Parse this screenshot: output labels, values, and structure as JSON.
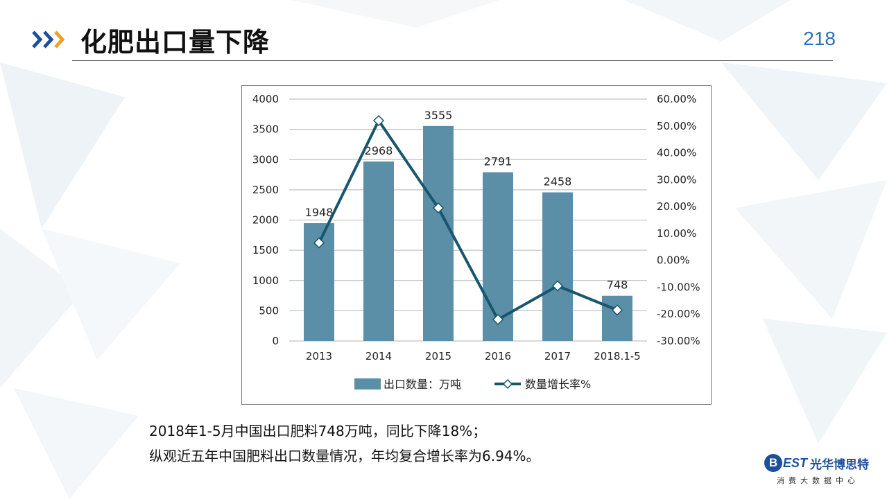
{
  "slide": {
    "title": "化肥出口量下降",
    "page_number": "218",
    "notes": [
      "2018年1-5月中国出口肥料748万吨，同比下降18%；",
      "纵观近五年中国肥料出口数量情况，年均复合增长率为6.94%。"
    ]
  },
  "logo": {
    "mark": "B",
    "mark_rest": "EST",
    "name": "光华博思特",
    "tagline": "消费大数据中心"
  },
  "colors": {
    "bar": "#5b8fa8",
    "line": "#18566e",
    "accent_arrow_dark": "#1f4f9a",
    "accent_arrow_orange": "#f0a02a",
    "page_number": "#2f6fb4"
  },
  "chart_data": {
    "type": "bar",
    "categories": [
      "2013",
      "2014",
      "2015",
      "2016",
      "2017",
      "2018.1-5"
    ],
    "series": [
      {
        "name": "出口数量：万吨",
        "type": "bar",
        "axis": "left",
        "values": [
          1948,
          2968,
          3555,
          2791,
          2458,
          748
        ],
        "data_labels": [
          "1948",
          "2968",
          "3555",
          "2791",
          "2458",
          "748"
        ]
      },
      {
        "name": "数量增长率%",
        "type": "line",
        "axis": "right",
        "marker": "diamond",
        "values": [
          6.5,
          52.0,
          19.5,
          -22.0,
          -9.5,
          -18.5
        ]
      }
    ],
    "y_left": {
      "ylim": [
        0,
        4000
      ],
      "ticks": [
        0,
        500,
        1000,
        1500,
        2000,
        2500,
        3000,
        3500,
        4000
      ],
      "tick_labels": [
        "0",
        "500",
        "1000",
        "1500",
        "2000",
        "2500",
        "3000",
        "3500",
        "4000"
      ]
    },
    "y_right": {
      "ylim": [
        -30,
        60
      ],
      "ticks": [
        -30,
        -20,
        -10,
        0,
        10,
        20,
        30,
        40,
        50,
        60
      ],
      "tick_labels": [
        "-30.00%",
        "-20.00%",
        "-10.00%",
        "0.00%",
        "10.00%",
        "20.00%",
        "30.00%",
        "40.00%",
        "50.00%",
        "60.00%"
      ]
    },
    "grid": true,
    "legend": "bottom"
  }
}
